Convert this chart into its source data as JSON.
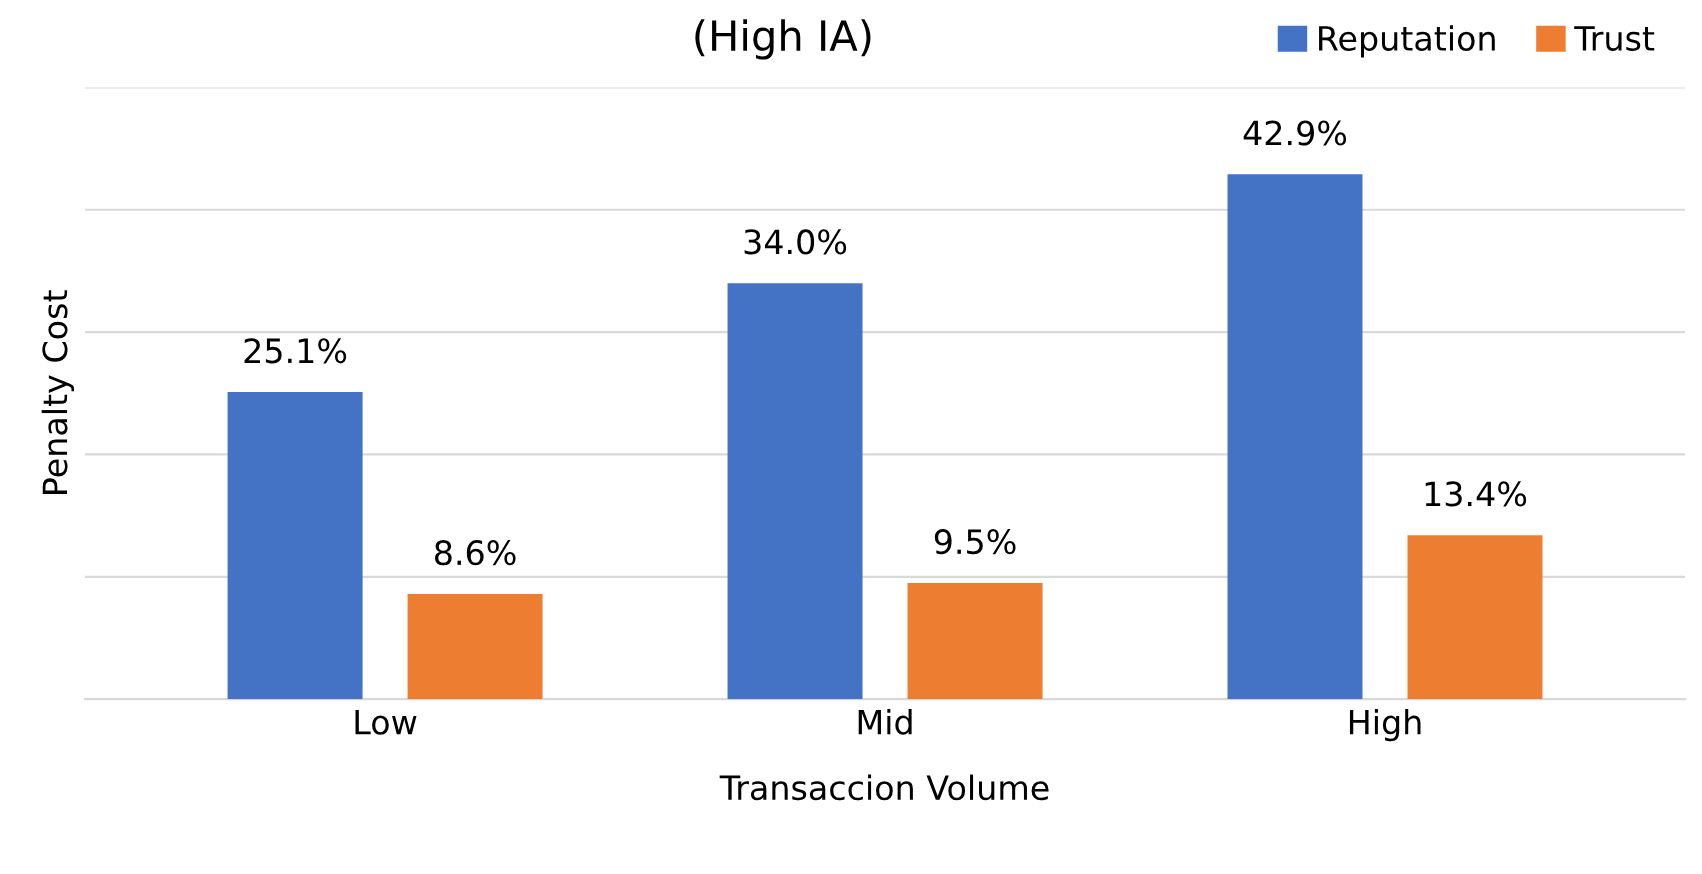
{
  "chart_data": {
    "type": "bar",
    "title": "(High IA)",
    "xlabel": "Transaccion Volume",
    "ylabel": "Penalty Cost",
    "categories": [
      "Low",
      "Mid",
      "High"
    ],
    "series": [
      {
        "name": "Reputation",
        "color": "#4472c4",
        "values": [
          25.1,
          34.0,
          42.9
        ],
        "value_labels": [
          "25.1%",
          "34.0%",
          "42.9%"
        ]
      },
      {
        "name": "Trust",
        "color": "#ed7d31",
        "values": [
          8.6,
          9.5,
          13.4
        ],
        "value_labels": [
          "8.6%",
          "9.5%",
          "13.4%"
        ]
      }
    ],
    "ylim": [
      0,
      50
    ],
    "yticks": [
      {
        "value": 0,
        "label": null
      },
      {
        "value": 10,
        "label": null
      },
      {
        "value": 20,
        "label": null
      },
      {
        "value": 30,
        "label": null
      },
      {
        "value": 40,
        "label": null
      },
      {
        "value": 50,
        "label": null
      }
    ],
    "grid": "y",
    "legend": "top right",
    "tick_labels": "x"
  }
}
